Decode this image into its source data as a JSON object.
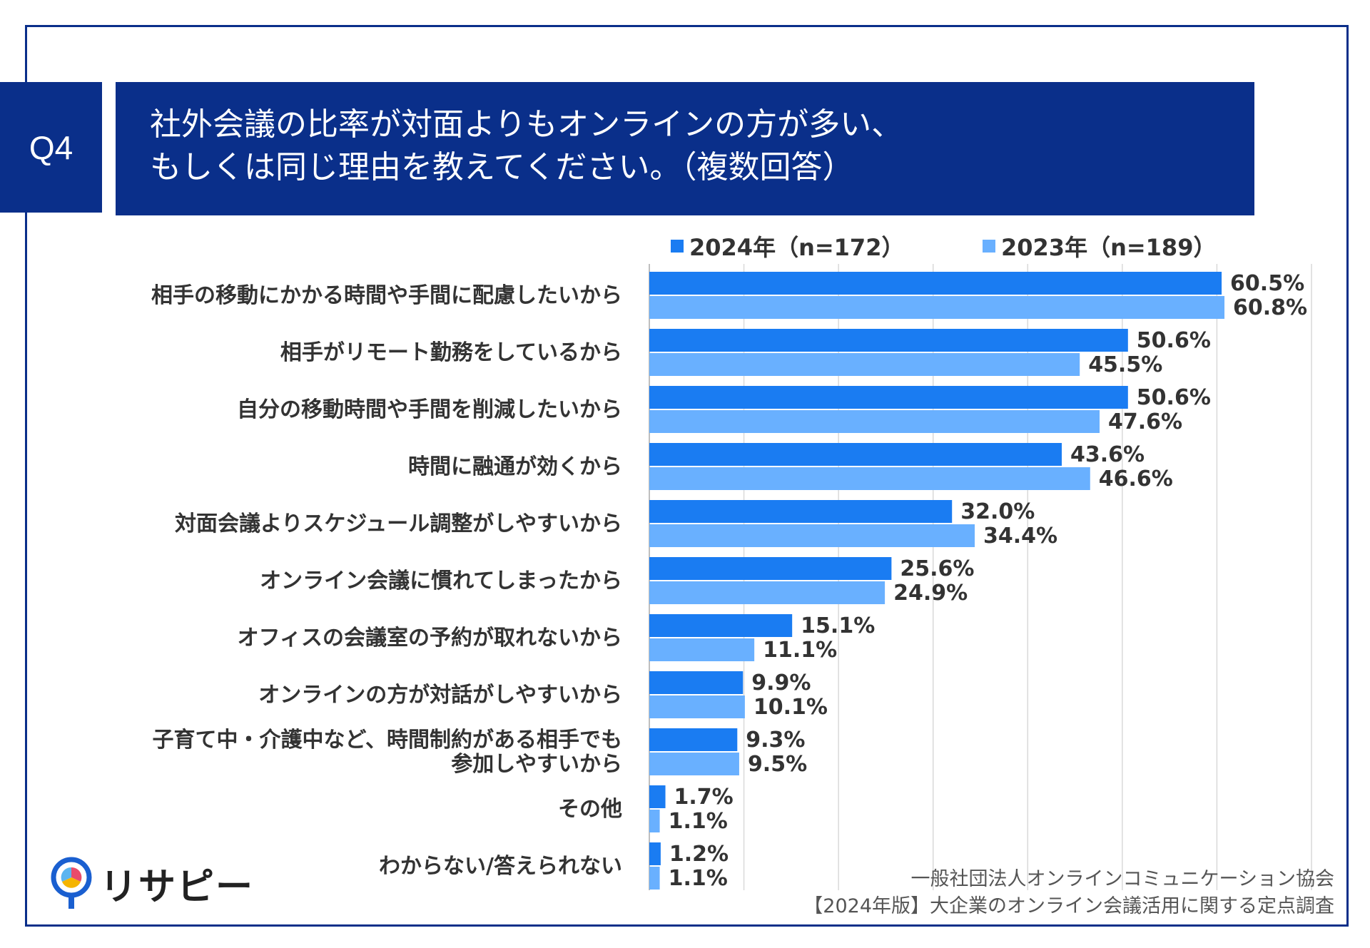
{
  "question": {
    "label": "Q4",
    "title_line1": "社外会議の比率が対面よりもオンラインの方が多い、",
    "title_line2": "もしくは同じ理由を教えてください。（複数回答）"
  },
  "legend": {
    "series1": "2024年（n=172）",
    "series2": "2023年（n=189）"
  },
  "colors": {
    "series1": "#1a7cf2",
    "series2": "#69b0ff",
    "header": "#0a2f8a"
  },
  "chart_data": {
    "type": "bar",
    "orientation": "horizontal",
    "title": "社外会議の比率が対面よりもオンラインの方が多い、もしくは同じ理由を教えてください。（複数回答）",
    "categories": [
      "相手の移動にかかる時間や手間に配慮したいから",
      "相手がリモート勤務をしているから",
      "自分の移動時間や手間を削減したいから",
      "時間に融通が効くから",
      "対面会議よりスケジュール調整がしやすいから",
      "オンライン会議に慣れてしまったから",
      "オフィスの会議室の予約が取れないから",
      "オンラインの方が対話がしやすいから",
      "子育て中・介護中など、時間制約がある相手でも\n参加しやすいから",
      "その他",
      "わからない/答えられない"
    ],
    "series": [
      {
        "name": "2024年（n=172）",
        "values": [
          60.5,
          50.6,
          50.6,
          43.6,
          32.0,
          25.6,
          15.1,
          9.9,
          9.3,
          1.7,
          1.2
        ],
        "labels": [
          "60.5%",
          "50.6%",
          "50.6%",
          "43.6%",
          "32.0%",
          "25.6%",
          "15.1%",
          "9.9%",
          "9.3%",
          "1.7%",
          "1.2%"
        ]
      },
      {
        "name": "2023年（n=189）",
        "values": [
          60.8,
          45.5,
          47.6,
          46.6,
          34.4,
          24.9,
          11.1,
          10.1,
          9.5,
          1.1,
          1.1
        ],
        "labels": [
          "60.8%",
          "45.5%",
          "47.6%",
          "46.6%",
          "34.4%",
          "24.9%",
          "11.1%",
          "10.1%",
          "9.5%",
          "1.1%",
          "1.1%"
        ]
      }
    ],
    "xlim": [
      0,
      70
    ],
    "grid": true,
    "legend_position": "top"
  },
  "source": {
    "line1": "一般社団法人オンラインコミュニケーション協会",
    "line2": "【2024年版】大企業のオンライン会議活用に関する定点調査"
  },
  "logo": {
    "text": "リサピー"
  }
}
